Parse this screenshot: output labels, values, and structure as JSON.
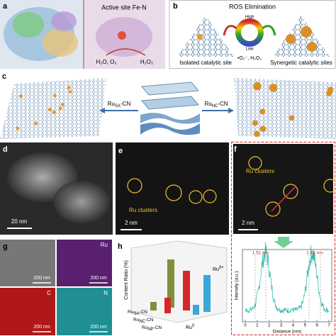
{
  "panels": {
    "a": {
      "letter": "a",
      "label": "Active site Fe-N",
      "products": "H₂O, O₂",
      "reactant": "H₂O₂"
    },
    "b": {
      "letter": "b",
      "title": "ROS Elimination",
      "high": "High",
      "low": "Low",
      "left_caption": "Isolated catalytic site",
      "center_caption": "•O₂⁻, H₂O₂",
      "right_caption": "Synergetic catalytic sites"
    },
    "c": {
      "letter": "c",
      "left_label": {
        "base": "Ru",
        "sub": "SA",
        "suffix": "-CN"
      },
      "right_label": {
        "base": "Ru",
        "sub": "NC",
        "suffix": "-CN"
      }
    },
    "d": {
      "letter": "d",
      "scale_bar": "20 nm"
    },
    "e": {
      "letter": "e",
      "annotation": "Ru clusters",
      "scale_bar": "2 nm"
    },
    "f": {
      "letter": "f",
      "annotation": "Ru clusters",
      "scale_bar": "2 nm",
      "profile": {
        "peak_labels": [
          "1.51 nm",
          "1.41 nm"
        ],
        "y_label": "Intensity (a.u.)",
        "x_label": "Distance (nm)",
        "xticks": [
          0,
          1,
          2,
          3,
          4,
          5,
          6,
          7
        ]
      }
    },
    "g": {
      "letter": "g",
      "maps": [
        "Ru",
        "C",
        "N"
      ],
      "scale_bars": [
        "200 nm",
        "200 nm",
        "200 nm",
        "200 nm"
      ]
    },
    "h": {
      "letter": "h",
      "y_label": "Content Ratio (%)",
      "samples": [
        {
          "base": "Ru",
          "sub": "SA",
          "suffix": "-CN"
        },
        {
          "base": "Ru",
          "sub": "NC",
          "suffix": "-CN"
        },
        {
          "base": "Ru",
          "sub": "NP",
          "suffix": "-CN"
        }
      ],
      "species": [
        {
          "base": "Ru",
          "sup": "0"
        },
        {
          "base": "Ru",
          "sup": "δ+"
        }
      ]
    }
  }
}
